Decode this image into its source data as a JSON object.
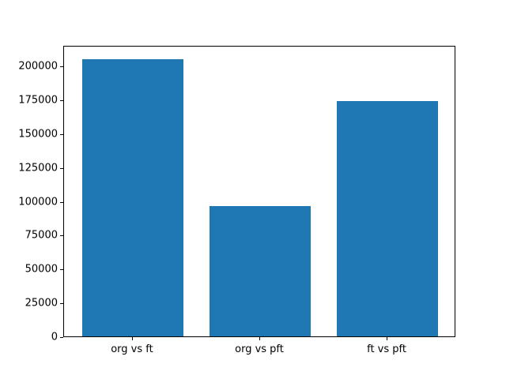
{
  "chart_data": {
    "type": "bar",
    "title": "",
    "xlabel": "",
    "ylabel": "",
    "categories": [
      "org vs ft",
      "org vs pft",
      "ft vs pft"
    ],
    "values": [
      205000,
      96000,
      174000
    ],
    "ylim": [
      0,
      215250
    ],
    "yticks": [
      0,
      25000,
      50000,
      75000,
      100000,
      125000,
      150000,
      175000,
      200000
    ],
    "ytick_labels": [
      "0",
      "25000",
      "50000",
      "75000",
      "100000",
      "125000",
      "150000",
      "175000",
      "200000"
    ],
    "grid": false,
    "legend": null,
    "bar_color": "#1f77b4",
    "background_color": "#ffffff",
    "spine_color": "#000000",
    "text_color": "#000000"
  }
}
